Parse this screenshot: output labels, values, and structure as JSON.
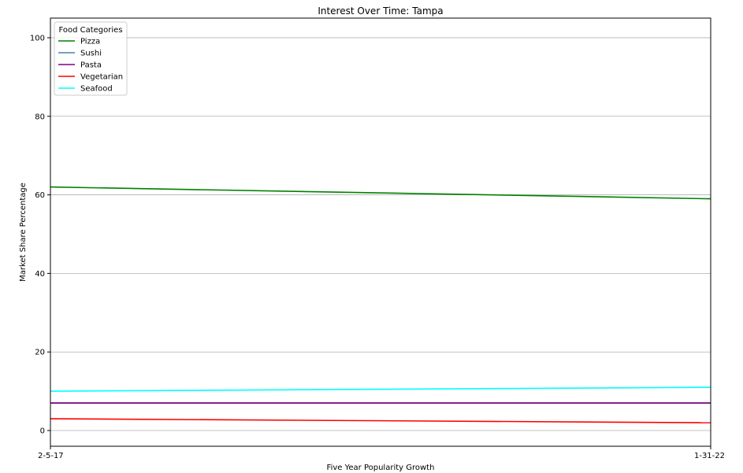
{
  "chart_data": {
    "type": "line",
    "title": "Interest Over Time: Tampa",
    "xlabel": "Five Year Popularity Growth",
    "ylabel": "Market Share Percentage",
    "x": [
      "2-5-17",
      "1-31-22"
    ],
    "ylim": [
      -4,
      105
    ],
    "yticks": [
      0,
      20,
      40,
      60,
      80,
      100
    ],
    "grid": "y",
    "legend": {
      "title": "Food Categories",
      "placement": "top-left"
    },
    "series": [
      {
        "name": "Pizza",
        "values": [
          62,
          59
        ],
        "color": "#008000"
      },
      {
        "name": "Sushi",
        "values": [
          7,
          7
        ],
        "color": "#4682b4"
      },
      {
        "name": "Pasta",
        "values": [
          7,
          7
        ],
        "color": "#800080"
      },
      {
        "name": "Vegetarian",
        "values": [
          3,
          2
        ],
        "color": "#ff0000"
      },
      {
        "name": "Seafood",
        "values": [
          10,
          11
        ],
        "color": "#00ffff"
      }
    ]
  }
}
